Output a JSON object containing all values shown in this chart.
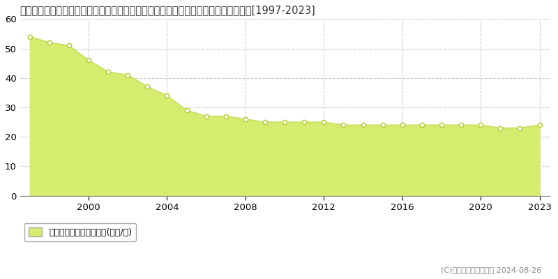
{
  "title": "東京都西多摩郡瑞穂町大字駒形富士山字稲荷林３８６番１８　基準地価格　地価推移[1997-2023]",
  "years": [
    1997,
    1998,
    1999,
    2000,
    2001,
    2002,
    2003,
    2004,
    2005,
    2006,
    2007,
    2008,
    2009,
    2010,
    2011,
    2012,
    2013,
    2014,
    2015,
    2016,
    2017,
    2018,
    2019,
    2020,
    2021,
    2022,
    2023
  ],
  "values": [
    54,
    52,
    51,
    46,
    42,
    41,
    37,
    34,
    29,
    27,
    27,
    26,
    25,
    25,
    25,
    25,
    24,
    24,
    24,
    24,
    24,
    24,
    24,
    24,
    23,
    23,
    24
  ],
  "fill_color": "#d4ed6e",
  "line_color": "#c8e060",
  "marker_facecolor": "#ffffff",
  "marker_edgecolor": "#b8d040",
  "ylim": [
    0,
    60
  ],
  "yticks": [
    0,
    10,
    20,
    30,
    40,
    50,
    60
  ],
  "xticks": [
    2000,
    2004,
    2008,
    2012,
    2016,
    2020,
    2023
  ],
  "grid_color": "#cccccc",
  "background_color": "#ffffff",
  "legend_label": "基準地価格　平均坪単価(万円/坪)",
  "copyright_text": "(C)土地価格ドットコム 2024-08-26",
  "title_fontsize": 10.5,
  "axis_fontsize": 9.5,
  "xlim_left": 1996.5,
  "xlim_right": 2023.5
}
